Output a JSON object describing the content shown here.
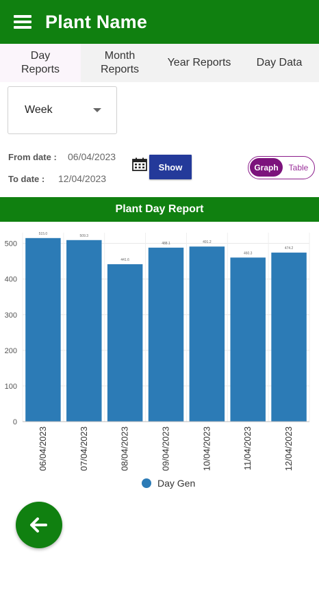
{
  "app": {
    "title": "Plant Name"
  },
  "tabs": [
    {
      "label_line1": "Day",
      "label_line2": "Reports",
      "active": true
    },
    {
      "label_line1": "Month",
      "label_line2": "Reports",
      "active": false
    },
    {
      "label": "Year Reports",
      "active": false
    },
    {
      "label": "Day Data",
      "active": false
    }
  ],
  "filter": {
    "period": "Week",
    "from_label": "From date :",
    "from_value": "06/04/2023",
    "to_label": "To date :",
    "to_value": "12/04/2023",
    "show_label": "Show"
  },
  "view_toggle": {
    "graph_label": "Graph",
    "table_label": "Table",
    "selected": "Graph"
  },
  "report": {
    "title": "Plant Day Report"
  },
  "chart_data": {
    "type": "bar",
    "categories": [
      "06/04/2023",
      "07/04/2023",
      "08/04/2023",
      "09/04/2023",
      "10/04/2023",
      "11/04/2023",
      "12/04/2023"
    ],
    "series": [
      {
        "name": "Day Gen",
        "color": "#2c7bb6",
        "values": [
          515.0,
          509.3,
          441.6,
          488.1,
          491.2,
          460.3,
          474.2
        ]
      }
    ],
    "data_labels": [
      "515.0",
      "509.3",
      "441.6",
      "488.1",
      "491.2",
      "460.3",
      "474.2"
    ],
    "y_ticks": [
      0,
      100,
      200,
      300,
      400,
      500
    ],
    "ylim": [
      0,
      530
    ],
    "grid": true,
    "legend_position": "bottom"
  },
  "colors": {
    "primary": "#108010",
    "accent": "#243a9a",
    "toggle": "#7c137c",
    "bar": "#2c7bb6"
  },
  "icons": {
    "menu": "menu-icon",
    "calendar": "calendar-icon",
    "dropdown": "chevron-down-icon",
    "back": "arrow-left-icon"
  }
}
